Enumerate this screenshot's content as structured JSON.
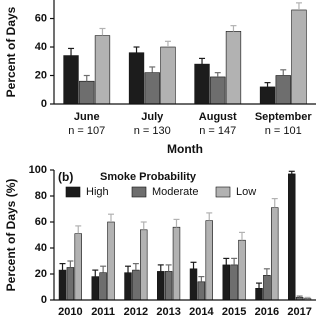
{
  "chart_data": [
    {
      "type": "bar",
      "ylabel": "Percent of Days",
      "xlabel": "Month",
      "categories": [
        "June",
        "July",
        "August",
        "September"
      ],
      "category_notes": [
        "n = 107",
        "n = 130",
        "n = 147",
        "n = 101"
      ],
      "ylim": [
        0,
        73
      ],
      "yticks": [
        0,
        20,
        40,
        60
      ],
      "series": [
        {
          "color": "#1c1c1c",
          "values": [
            34,
            36,
            28,
            12
          ],
          "errors": [
            5,
            4,
            4,
            3
          ]
        },
        {
          "color": "#6e6e6e",
          "values": [
            16,
            22,
            19,
            20
          ],
          "errors": [
            4,
            4,
            3,
            4
          ]
        },
        {
          "color": "#b2b2b2",
          "values": [
            48,
            40,
            51,
            66
          ],
          "errors": [
            5,
            4,
            4,
            5
          ]
        }
      ]
    },
    {
      "type": "bar",
      "title": "(b)",
      "ylabel": "Percent of Days (%)",
      "legend_title": "Smoke Probability",
      "categories": [
        "2010",
        "2011",
        "2012",
        "2013",
        "2014",
        "2015",
        "2016",
        "2017"
      ],
      "ylim": [
        0,
        100
      ],
      "yticks": [
        0,
        20,
        40,
        60,
        80,
        100
      ],
      "series": [
        {
          "name": "High",
          "color": "#1c1c1c",
          "values": [
            23,
            18,
            21,
            22,
            24,
            27,
            9,
            97
          ],
          "errors": [
            5,
            5,
            5,
            5,
            5,
            5,
            4,
            2
          ]
        },
        {
          "name": "Moderate",
          "color": "#6e6e6e",
          "values": [
            25,
            21,
            23,
            22,
            14,
            27,
            19,
            2
          ],
          "errors": [
            5,
            5,
            5,
            5,
            4,
            5,
            5,
            1
          ]
        },
        {
          "name": "Low",
          "color": "#b2b2b2",
          "values": [
            51,
            60,
            54,
            56,
            61,
            46,
            71,
            1
          ],
          "errors": [
            6,
            6,
            6,
            6,
            6,
            6,
            7,
            1
          ]
        }
      ]
    }
  ]
}
